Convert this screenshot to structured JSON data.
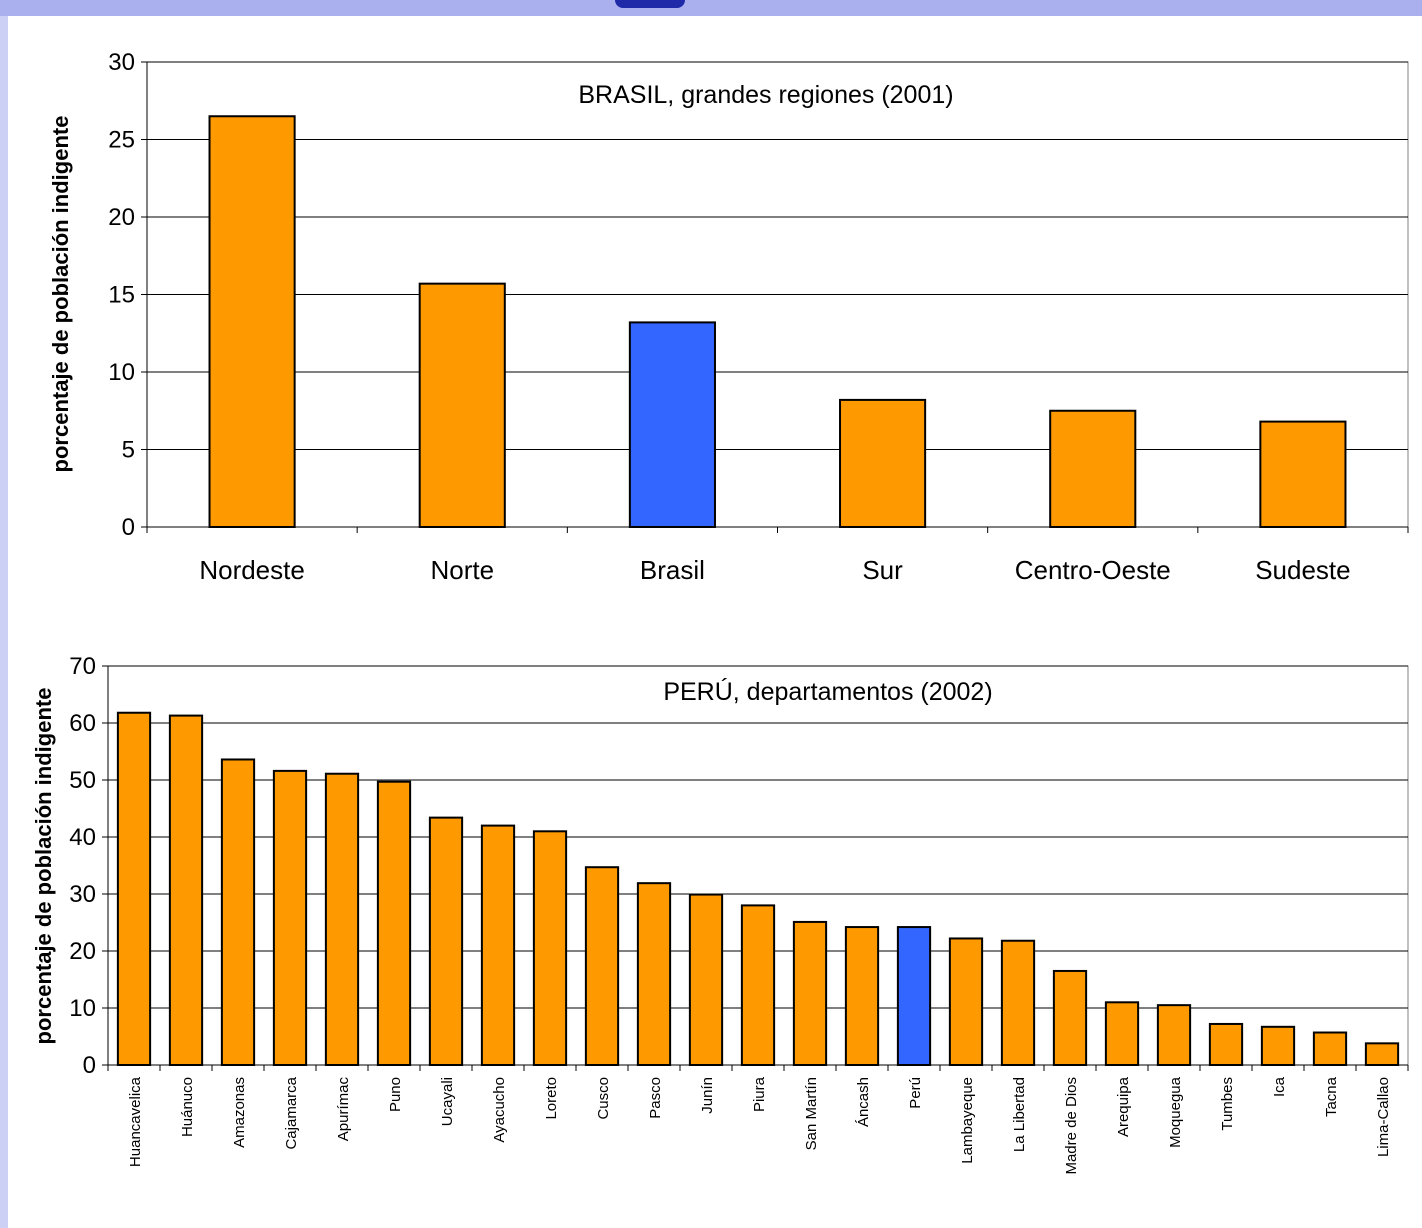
{
  "colors": {
    "bar_default": "#ff9900",
    "bar_highlight": "#3366ff",
    "bar_stroke": "#000000",
    "slide_background": "#ccd0f5"
  },
  "chart_data": [
    {
      "type": "bar",
      "title": "BRASIL, grandes regiones (2001)",
      "ylabel": "porcentaje de población indigente",
      "xlabel": "",
      "ylim": [
        0,
        30
      ],
      "yticks": [
        0,
        5,
        10,
        15,
        20,
        25,
        30
      ],
      "grid": true,
      "categories": [
        "Nordeste",
        "Norte",
        "Brasil",
        "Sur",
        "Centro-Oeste",
        "Sudeste"
      ],
      "values": [
        26.5,
        15.7,
        13.2,
        8.2,
        7.5,
        6.8
      ],
      "highlight_category": "Brasil"
    },
    {
      "type": "bar",
      "title": "PERÚ, departamentos (2002)",
      "ylabel": "porcentaje de población indigente",
      "xlabel": "",
      "ylim": [
        0,
        70
      ],
      "yticks": [
        0,
        10,
        20,
        30,
        40,
        50,
        60,
        70
      ],
      "grid": true,
      "categories": [
        "Huancavelica",
        "Huánuco",
        "Amazonas",
        "Cajamarca",
        "Apurímac",
        "Puno",
        "Ucayali",
        "Ayacucho",
        "Loreto",
        "Cusco",
        "Pasco",
        "Junín",
        "Piura",
        "San Martín",
        "Áncash",
        "Perú",
        "Lambayeque",
        "La Libertad",
        "Madre de Dios",
        "Arequipa",
        "Moquegua",
        "Tumbes",
        "Ica",
        "Tacna",
        "Lima-Callao"
      ],
      "values": [
        61.8,
        61.3,
        53.6,
        51.6,
        51.1,
        49.7,
        43.4,
        42.0,
        41.0,
        34.7,
        31.9,
        29.9,
        28.0,
        25.1,
        24.2,
        24.2,
        22.2,
        21.8,
        16.5,
        11.0,
        10.5,
        7.2,
        6.7,
        5.7,
        3.8
      ],
      "highlight_category": "Perú"
    }
  ]
}
